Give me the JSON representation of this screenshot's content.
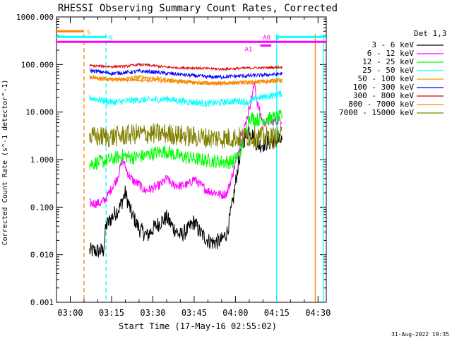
{
  "chart_data": {
    "type": "line",
    "title": "RHESSI Observing Summary Count Rates, Corrected",
    "xlabel": "Start Time (17-May-16 02:55:02)",
    "ylabel": "Corrected Count Rate (s^-1 detector^-1)",
    "yscale": "log",
    "ylim": [
      0.001,
      1000
    ],
    "xlim_minutes": [
      0,
      98
    ],
    "x_ticks": [
      {
        "m": 5,
        "label": "03:00"
      },
      {
        "m": 20,
        "label": "03:15"
      },
      {
        "m": 35,
        "label": "03:30"
      },
      {
        "m": 50,
        "label": "03:45"
      },
      {
        "m": 65,
        "label": "04:00"
      },
      {
        "m": 80,
        "label": "04:15"
      },
      {
        "m": 95,
        "label": "04:30"
      }
    ],
    "y_ticks": [
      {
        "v": 1000,
        "label": "1000.000"
      },
      {
        "v": 100,
        "label": "100.000"
      },
      {
        "v": 10,
        "label": "10.000"
      },
      {
        "v": 1,
        "label": "1.000"
      },
      {
        "v": 0.1,
        "label": "0.100"
      },
      {
        "v": 0.01,
        "label": "0.010"
      },
      {
        "v": 0.001,
        "label": "0.001"
      }
    ],
    "legend_title": "Det 1,3",
    "legend_position": "right",
    "series": [
      {
        "name": "3 - 6 keV",
        "color": "#000000",
        "noise": 0.35,
        "points": [
          [
            12,
            0.012
          ],
          [
            17,
            0.012
          ],
          [
            18,
            0.04
          ],
          [
            20,
            0.06
          ],
          [
            23,
            0.1
          ],
          [
            25,
            0.2
          ],
          [
            27,
            0.08
          ],
          [
            30,
            0.035
          ],
          [
            33,
            0.025
          ],
          [
            35,
            0.035
          ],
          [
            38,
            0.05
          ],
          [
            40,
            0.06
          ],
          [
            42,
            0.04
          ],
          [
            45,
            0.025
          ],
          [
            48,
            0.035
          ],
          [
            50,
            0.05
          ],
          [
            52,
            0.03
          ],
          [
            55,
            0.02
          ],
          [
            57,
            0.018
          ],
          [
            60,
            0.02
          ],
          [
            62,
            0.03
          ],
          [
            64,
            0.12
          ],
          [
            66,
            0.8
          ],
          [
            68,
            2.5
          ],
          [
            70,
            4.5
          ],
          [
            73,
            2.0
          ],
          [
            76,
            2.2
          ],
          [
            80,
            2.5
          ],
          [
            82,
            2.5
          ]
        ]
      },
      {
        "name": "6 - 12 keV",
        "color": "#ff00ff",
        "noise": 0.2,
        "points": [
          [
            12,
            0.12
          ],
          [
            16,
            0.12
          ],
          [
            18,
            0.15
          ],
          [
            20,
            0.25
          ],
          [
            22,
            0.4
          ],
          [
            24,
            1.0
          ],
          [
            26,
            0.5
          ],
          [
            28,
            0.35
          ],
          [
            30,
            0.3
          ],
          [
            32,
            0.22
          ],
          [
            35,
            0.25
          ],
          [
            38,
            0.3
          ],
          [
            40,
            0.4
          ],
          [
            42,
            0.3
          ],
          [
            45,
            0.28
          ],
          [
            48,
            0.3
          ],
          [
            50,
            0.4
          ],
          [
            52,
            0.3
          ],
          [
            55,
            0.22
          ],
          [
            58,
            0.2
          ],
          [
            60,
            0.18
          ],
          [
            62,
            0.2
          ],
          [
            64,
            0.5
          ],
          [
            66,
            1.5
          ],
          [
            68,
            4.0
          ],
          [
            70,
            12
          ],
          [
            72,
            40
          ],
          [
            73,
            15
          ],
          [
            75,
            6
          ],
          [
            80,
            6.5
          ],
          [
            82,
            7
          ]
        ]
      },
      {
        "name": "12 - 25 keV",
        "color": "#00ff00",
        "noise": 0.3,
        "points": [
          [
            12,
            0.8
          ],
          [
            16,
            0.9
          ],
          [
            20,
            1.0
          ],
          [
            24,
            1.2
          ],
          [
            28,
            1.1
          ],
          [
            32,
            1.2
          ],
          [
            36,
            1.4
          ],
          [
            40,
            1.5
          ],
          [
            44,
            1.2
          ],
          [
            48,
            1.1
          ],
          [
            52,
            1.0
          ],
          [
            56,
            0.95
          ],
          [
            60,
            0.9
          ],
          [
            64,
            0.9
          ],
          [
            66,
            1.2
          ],
          [
            68,
            2.5
          ],
          [
            70,
            8
          ],
          [
            72,
            7
          ],
          [
            75,
            7
          ],
          [
            80,
            7.5
          ],
          [
            82,
            8
          ]
        ]
      },
      {
        "name": "25 - 50 keV",
        "color": "#00ffff",
        "noise": 0.15,
        "points": [
          [
            12,
            20
          ],
          [
            16,
            18
          ],
          [
            20,
            16
          ],
          [
            25,
            17
          ],
          [
            30,
            18
          ],
          [
            35,
            18
          ],
          [
            40,
            19
          ],
          [
            45,
            17
          ],
          [
            50,
            16
          ],
          [
            55,
            15
          ],
          [
            60,
            16
          ],
          [
            64,
            17
          ],
          [
            67,
            17
          ],
          [
            70,
            16
          ],
          [
            73,
            20
          ],
          [
            76,
            21
          ],
          [
            80,
            23
          ],
          [
            82,
            25
          ]
        ]
      },
      {
        "name": "50 - 100 keV",
        "color": "#e0a000",
        "noise": 0.08,
        "points": [
          [
            12,
            55
          ],
          [
            16,
            50
          ],
          [
            20,
            48
          ],
          [
            25,
            50
          ],
          [
            30,
            55
          ],
          [
            35,
            52
          ],
          [
            40,
            48
          ],
          [
            45,
            45
          ],
          [
            50,
            42
          ],
          [
            55,
            40
          ],
          [
            60,
            40
          ],
          [
            65,
            42
          ],
          [
            70,
            42
          ],
          [
            75,
            44
          ],
          [
            80,
            46
          ],
          [
            82,
            48
          ]
        ]
      },
      {
        "name": "100 - 300 keV",
        "color": "#0000ff",
        "noise": 0.08,
        "points": [
          [
            12,
            75
          ],
          [
            16,
            70
          ],
          [
            20,
            65
          ],
          [
            25,
            68
          ],
          [
            30,
            72
          ],
          [
            35,
            70
          ],
          [
            40,
            65
          ],
          [
            45,
            62
          ],
          [
            50,
            58
          ],
          [
            55,
            55
          ],
          [
            60,
            55
          ],
          [
            65,
            57
          ],
          [
            70,
            58
          ],
          [
            75,
            60
          ],
          [
            80,
            62
          ],
          [
            82,
            65
          ]
        ]
      },
      {
        "name": "300 - 800 keV",
        "color": "#dd0000",
        "noise": 0.05,
        "points": [
          [
            12,
            95
          ],
          [
            16,
            92
          ],
          [
            20,
            90
          ],
          [
            25,
            92
          ],
          [
            30,
            100
          ],
          [
            35,
            95
          ],
          [
            40,
            88
          ],
          [
            45,
            85
          ],
          [
            50,
            85
          ],
          [
            55,
            82
          ],
          [
            60,
            80
          ],
          [
            65,
            82
          ],
          [
            70,
            85
          ],
          [
            75,
            85
          ],
          [
            80,
            87
          ],
          [
            82,
            88
          ]
        ]
      },
      {
        "name": "800 - 7000 keV",
        "color": "#ff8000",
        "noise": 0.08,
        "points": [
          [
            12,
            55
          ],
          [
            20,
            48
          ],
          [
            30,
            48
          ],
          [
            40,
            45
          ],
          [
            50,
            42
          ],
          [
            60,
            40
          ],
          [
            70,
            42
          ],
          [
            80,
            45
          ],
          [
            82,
            46
          ]
        ]
      },
      {
        "name": "7000 - 15000 keV",
        "color": "#808000",
        "noise": 0.45,
        "points": [
          [
            12,
            3
          ],
          [
            20,
            3
          ],
          [
            30,
            3.5
          ],
          [
            40,
            3.5
          ],
          [
            50,
            3
          ],
          [
            60,
            2.8
          ],
          [
            70,
            3
          ],
          [
            80,
            3
          ],
          [
            82,
            3.2
          ]
        ]
      }
    ],
    "annotations": {
      "flags": [
        {
          "label": "S",
          "color": "#ff8000",
          "m1": 0,
          "m2": 10
        },
        {
          "label": "N",
          "color": "#00ffff",
          "m1": 0,
          "m2": 18
        },
        {
          "label": "N",
          "color": "#00ffff",
          "m1": 80,
          "m2": 98
        },
        {
          "label": "A0",
          "color": "#ff00ff",
          "m1": 0,
          "m2": 98
        },
        {
          "label": "A1",
          "color": "#ff00ff",
          "m1": 74,
          "m2": 78
        }
      ],
      "vlines": [
        {
          "m": 10,
          "color": "#ff8000",
          "style": "dashed"
        },
        {
          "m": 18,
          "color": "#00ffff",
          "style": "dashed"
        },
        {
          "m": 80,
          "color": "#00ffff",
          "style": "solid"
        },
        {
          "m": 94,
          "color": "#ff8000",
          "style": "solid"
        },
        {
          "m": 97,
          "color": "#00ffff",
          "style": "solid"
        }
      ]
    },
    "footer_date": "31-Aug-2022 19:35"
  }
}
